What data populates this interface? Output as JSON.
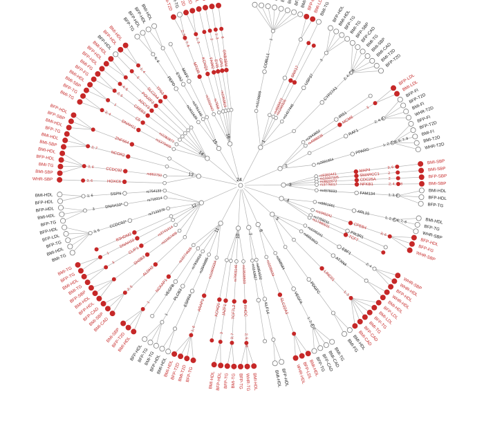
{
  "colors": {
    "red": "#c62828",
    "black": "#1a1a1a",
    "edge": "#b3b3b3",
    "grey_fill": "#f2f2f2",
    "node_stroke": "#7a7a7a"
  },
  "center_label": "24",
  "groups": [
    {
      "chr": "1",
      "genes": [
        {
          "snp": "rs1126809",
          "gene": "COBLL1",
          "count": "1",
          "traits": [
            "BFP-HDL",
            "BMI-HDL",
            "BFP-TG",
            "BMI-TG",
            "BFP-T2D",
            "BMI-T2D",
            "BFP-CAD",
            "BMI-CAD"
          ],
          "red": [
            false,
            false,
            false,
            false,
            false,
            false,
            false,
            false
          ],
          "g": false
        },
        {
          "snp": "",
          "gene": "",
          "count": "",
          "traits": [
            "BFP-LDL",
            "BMI-LDL"
          ],
          "red": [
            true,
            true
          ],
          "g": false
        },
        {
          "snp": "rs4665972",
          "gene": "SNX17",
          "count": "",
          "traits": [
            "BMI-TG"
          ],
          "red": [
            false
          ],
          "g": true
        },
        {
          "snp": "rs1260326",
          "gene": "",
          "count": "",
          "traits": [],
          "red": [],
          "g": true
        },
        {
          "snp": "rs1427445",
          "gene": "USP37",
          "count": "3",
          "traits": [
            "BFP-HDL",
            "BMI-HDL",
            "BFP-TG",
            "BMI-TG"
          ],
          "red": [
            false,
            false,
            false,
            false
          ],
          "g": false
        },
        {
          "snp": "",
          "gene": "CYP27A1",
          "count": "2; 4; 7; 8",
          "traits": [
            "BFP-SBP",
            "BFP-CAD",
            "BMI-TG",
            "BMI-SBP",
            "BMI-CAD",
            "BMI-T2D",
            "BFP-T2D"
          ],
          "red": [
            false,
            false,
            false,
            false,
            false,
            false,
            false
          ],
          "g": false
        }
      ]
    },
    {
      "chr": "2",
      "genes": [
        {
          "snp": "rs2943652",
          "gene": "IRS1",
          "count": "",
          "traits": [],
          "red": [],
          "g": false
        },
        {
          "snp": "rs4988235",
          "gene": "MCM6",
          "count": "3",
          "traits": [
            "BFP-LDL",
            "BMI-LDL"
          ],
          "red": [
            true,
            true
          ],
          "g": true
        },
        {
          "snp": "",
          "gene": "RAF1",
          "count": "2; 4; 8",
          "traits": [
            "BFP-FI",
            "BFP-T2D",
            "BMI-FI",
            "WHR-T2D"
          ],
          "red": [
            false,
            false,
            false,
            false
          ],
          "g": false
        },
        {
          "snp": "rs2881654",
          "gene": "PPARG",
          "count": "1; 2; 3; 5; 6; 7; 8",
          "traits": [
            "BFP-FI",
            "BFP-T2D",
            "BMI-FI",
            "BMI-T2D",
            "WHR-T2D"
          ],
          "red": [
            false,
            false,
            false,
            false,
            false
          ],
          "g": false
        }
      ]
    },
    {
      "chr": "3",
      "genes": [
        {
          "snp": "rs9382441",
          "gene": "MAP4",
          "count": "3; 6",
          "traits": [
            "BMI-SBP"
          ],
          "red": [
            true
          ],
          "g": true
        },
        {
          "snp": "rs13107325",
          "gene": "SMARCC1",
          "count": "2",
          "traits": [
            "BMI-SBP"
          ],
          "red": [
            true
          ],
          "g": true
        },
        {
          "snp": "rs3822072",
          "gene": "CDC25A",
          "count": "2",
          "traits": [
            "BFP-SBP"
          ],
          "red": [
            true
          ],
          "g": true
        },
        {
          "snp": "rs3776017",
          "gene": "NFKB1",
          "count": "2; 4; 7; 8",
          "traits": [
            "BMI-SBP"
          ],
          "red": [
            true
          ],
          "g": true
        },
        {
          "snp": "rs4976033",
          "gene": "FAM134",
          "count": "1; 3; 6",
          "traits": [
            "BMI-HDL",
            "BFP-HDL",
            "BFP-TG"
          ],
          "red": [
            false,
            false,
            false
          ],
          "g": false
        }
      ]
    },
    {
      "chr": "4",
      "genes": [
        {
          "snp": "rs9861661",
          "gene": "ARL15",
          "count": "1; 2; 4; 6; 7; 8",
          "traits": [
            "BMI-HDL",
            "BFP-TG",
            "WHR-SBP"
          ],
          "red": [
            false,
            false,
            false
          ],
          "g": false
        },
        {
          "snp": "rs1045241",
          "gene": "CPEB4",
          "count": "3; 6",
          "traits": [
            "BFP-HDL",
            "BFP-FG",
            "WHR-SBP"
          ],
          "red": [
            true,
            true,
            true
          ],
          "g": true
        },
        {
          "snp": "rs7759211",
          "gene": "PIK3R1",
          "count": "",
          "traits": [],
          "red": [],
          "g": false
        },
        {
          "snp": "rs17490011",
          "gene": "TCF7",
          "count": "",
          "traits": [],
          "red": [],
          "g": true
        }
      ]
    },
    {
      "chr": "5",
      "genes": [
        {
          "snp": "rs1045241",
          "gene": "EBF1",
          "count": "2; 4",
          "traits": [
            "WHR-SBP",
            "WHR-HDL",
            "BFP-HDL"
          ],
          "red": [
            true,
            true,
            true
          ],
          "g": false
        },
        {
          "snp": "rs6553922",
          "gene": "ATXN4",
          "count": "",
          "traits": [
            "WHR-HDL",
            "BMI-HDL"
          ],
          "red": [
            true,
            true
          ],
          "g": false
        },
        {
          "snp": "",
          "gene": "LINC01",
          "count": "1; 3",
          "traits": [
            "BFP-LDL",
            "BMI-LDL",
            "BFP-TG",
            "BMI-TG",
            "BFP-CAD",
            "BMI-CAD"
          ],
          "red": [
            true,
            true,
            true,
            true,
            true,
            true
          ],
          "g": true
        },
        {
          "snp": "",
          "gene": "PDGFC",
          "count": "",
          "traits": [
            "BMI-HDL",
            "BMI-FG"
          ],
          "red": [
            false,
            false
          ],
          "g": false
        }
      ]
    },
    {
      "chr": "6",
      "genes": [
        {
          "snp": "rs998584",
          "gene": "VEGFA",
          "count": "1; 2; 4; 7",
          "traits": [
            "BMI-TG",
            "BMI-CAD",
            "BFP-CAD",
            "BFP-TG"
          ],
          "red": [
            false,
            false,
            false,
            false
          ],
          "g": false
        },
        {
          "snp": "rs2235634",
          "gene": "SLC22A3",
          "count": "",
          "traits": [
            "BMI-HDL",
            "BFP-LDL",
            "WHR-HDL"
          ],
          "red": [
            true,
            true,
            true
          ],
          "g": true
        }
      ]
    },
    {
      "chr": "7",
      "genes": [
        {
          "snp": "rs6954302",
          "gene": "KLF14",
          "count": "",
          "traits": [
            "BFP-HDL",
            "BMI-HDL"
          ],
          "red": [
            false,
            false
          ],
          "g": false
        },
        {
          "snp": "rs1143827",
          "gene": "",
          "count": "",
          "traits": [],
          "red": [],
          "g": false
        }
      ]
    },
    {
      "chr": "10",
      "genes": [
        {
          "snp": "rs10508503",
          "gene": "RHOC",
          "count": "2; 5; 6; 8",
          "traits": [
            "BMI-HDL",
            "WHR-TG",
            "BFP-TG"
          ],
          "red": [
            true,
            true,
            true
          ],
          "g": true
        },
        {
          "snp": "rs7903146",
          "gene": "TCF7L2",
          "count": "3; 7",
          "traits": [
            "BMI-TG",
            "BFP-TG"
          ],
          "red": [
            true,
            true
          ],
          "g": true
        },
        {
          "snp": "",
          "gene": "JAZF1",
          "count": "3",
          "traits": [
            "BFP-HDL",
            "BMI-HDL"
          ],
          "red": [
            true,
            true
          ],
          "g": true
        },
        {
          "snp": "",
          "gene": "KCNQ1",
          "count": "",
          "traits": [],
          "red": [],
          "g": true
        }
      ]
    },
    {
      "chr": "11",
      "genes": [
        {
          "snp": "rs11603334",
          "gene": "ARAP1",
          "count": "1; 6",
          "traits": [
            "BFP-TG",
            "BMI-T2D",
            "BFP-T2D",
            "BMI-HDL"
          ],
          "red": [
            true,
            true,
            true,
            true
          ],
          "g": true
        },
        {
          "snp": "rs2845885",
          "gene": "ESRRA",
          "count": "",
          "traits": [
            "BMI-HDL",
            "BFP-HDL"
          ],
          "red": [
            false,
            false
          ],
          "g": false
        },
        {
          "snp": "rs7936810",
          "gene": "PLCB3",
          "count": "1",
          "traits": [
            "BMI-TG",
            "BFP-TG",
            "BFP-HDL"
          ],
          "red": [
            false,
            false,
            false
          ],
          "g": false
        },
        {
          "snp": "",
          "gene": "VEGFB",
          "count": "",
          "traits": [],
          "red": [],
          "g": false
        },
        {
          "snp": "rs10774625",
          "gene": "NCKAP1",
          "count": "1",
          "traits": [
            "BMI-HDL",
            "BFP-T2D",
            "BMI-SBP"
          ],
          "red": [
            true,
            true,
            true
          ],
          "g": true
        }
      ]
    },
    {
      "chr": "12",
      "genes": [
        {
          "snp": "",
          "gene": "ALDH2",
          "count": "2; 5",
          "traits": [
            "BMI-CAD",
            "BMI-SBP",
            "BFP-CAD"
          ],
          "red": [
            true,
            true,
            true
          ],
          "g": true
        },
        {
          "snp": "rs11057405",
          "gene": "SH2B3",
          "count": "",
          "traits": [
            "BFP-HDL",
            "BMI-HDL",
            "BFP-SBP"
          ],
          "red": [
            true,
            true,
            true
          ],
          "g": true
        },
        {
          "snp": "rs3741414",
          "gene": "CLIP1",
          "count": "3",
          "traits": [
            "BMI-TG",
            "BMI-HDL"
          ],
          "red": [
            true,
            true
          ],
          "g": true
        },
        {
          "snp": "",
          "gene": "DNAH10",
          "count": "1",
          "traits": [
            "BFP-TG",
            "BMI-TG"
          ],
          "red": [
            true,
            true
          ],
          "g": true
        },
        {
          "snp": "",
          "gene": "R3HDM2",
          "count": "",
          "traits": [],
          "red": [],
          "g": true
        },
        {
          "snp": "rs7133378",
          "gene": "CCDC92*",
          "count": "3; 6",
          "traits": [
            "BMI-TG",
            "BMI-HDL",
            "BFP-TG",
            "BFP-LDL",
            "BFP-HDL"
          ],
          "red": [
            false,
            false,
            false,
            false,
            false
          ],
          "g": false
        },
        {
          "snp": "rs718314",
          "gene": "DNAH10*",
          "count": "3",
          "traits": [
            "BFP-TG",
            "BMI-HDL",
            "BFP-HDL"
          ],
          "red": [
            false,
            false,
            false
          ],
          "g": false
        },
        {
          "snp": "rs754133",
          "gene": "SSPN",
          "count": "1; 6",
          "traits": [
            "BFP-HDL",
            "BMI-HDL"
          ],
          "red": [
            false,
            false
          ],
          "g": false
        }
      ]
    },
    {
      "chr": "13",
      "genes": [
        {
          "snp": "",
          "gene": "HOXC6",
          "count": "3; 6",
          "traits": [
            "WHR-SBP"
          ],
          "red": [
            true
          ],
          "g": true
        },
        {
          "snp": "rs863750",
          "gene": "CCDC92",
          "count": "3; 6",
          "traits": [
            "BMI-SBP",
            "BMI-TG",
            "BFP-HDL",
            "BMI-HDL"
          ],
          "red": [
            true,
            true,
            true,
            true
          ],
          "g": true
        },
        {
          "snp": "",
          "gene": "NCOR2",
          "count": "2; 7",
          "traits": [
            "BMI-SBP",
            "BMI-HDL",
            "BFP-TG"
          ],
          "red": [
            true,
            true,
            true
          ],
          "g": true
        },
        {
          "snp": "",
          "gene": "ZNF664",
          "count": "",
          "traits": [
            "BMI-HDL",
            "BFP-SBP",
            "BFP-HDL"
          ],
          "red": [
            true,
            true,
            true
          ],
          "g": true
        }
      ]
    },
    {
      "chr": "14",
      "genes": [
        {
          "snp": "rs1379499",
          "gene": "DNAH11",
          "count": "2; 4",
          "traits": [
            "BMI-TG",
            "BFP-TG"
          ],
          "red": [
            true,
            true
          ],
          "g": true
        },
        {
          "snp": "rs2282877",
          "gene": "C5",
          "count": "1",
          "traits": [
            "BMI-SBP",
            "BMI-HDL"
          ],
          "red": [
            true,
            true
          ],
          "g": true
        },
        {
          "snp": "",
          "gene": "CREB3",
          "count": "2; 5",
          "traits": [
            "BFP-FG",
            "BMI-FG"
          ],
          "red": [
            true,
            true
          ],
          "g": true
        },
        {
          "snp": "",
          "gene": "ADCY3",
          "count": "2; 4; 5",
          "traits": [
            "BFP-HDL"
          ],
          "red": [
            true
          ],
          "g": true
        },
        {
          "snp": "",
          "gene": "POU2F2",
          "count": "",
          "traits": [
            "BFP-HDL",
            "BMI-HDL"
          ],
          "red": [
            true,
            true
          ],
          "g": true
        },
        {
          "snp": "",
          "gene": "SLC2A4",
          "count": "3",
          "traits": [
            "BFP-HDL"
          ],
          "red": [
            false
          ],
          "g": true
        },
        {
          "snp": "",
          "gene": "TP53",
          "count": "1; 4",
          "traits": [
            "BFP-HDL",
            "BMI-HDL"
          ],
          "red": [
            true,
            true
          ],
          "g": true
        }
      ]
    },
    {
      "chr": "15",
      "genes": [
        {
          "snp": "rs2611639",
          "gene": "PEPD",
          "count": "6; 8",
          "traits": [
            "BFP-TG",
            "BFP-HDL"
          ],
          "red": [
            false,
            false
          ],
          "g": false
        },
        {
          "snp": "rs3761445",
          "gene": "EYA2",
          "count": "",
          "traits": [
            "BFP-HDL",
            "BMI-HDL"
          ],
          "red": [
            false,
            false
          ],
          "g": false
        },
        {
          "snp": "",
          "gene": "MAFF",
          "count": "",
          "traits": [],
          "red": [],
          "g": false
        }
      ]
    },
    {
      "chr": "16",
      "genes": [
        {
          "snp": "rs1010447",
          "gene": "MTOR",
          "count": "2; 3; 5; 7; 8",
          "traits": [
            "BMI-T2D",
            "BMI-TG"
          ],
          "red": [
            true,
            false
          ],
          "g": true
        },
        {
          "snp": "rs7558",
          "gene": "KCNQ1",
          "count": "1; 3",
          "traits": [
            "BMI-T2D",
            "BFP-T2D"
          ],
          "red": [
            true,
            true
          ],
          "g": true
        },
        {
          "snp": "",
          "gene": "FAIM2",
          "count": "",
          "traits": [
            "BFP-HDL"
          ],
          "red": [
            true
          ],
          "g": true
        },
        {
          "snp": "rs1093819",
          "gene": "EVI5",
          "count": "2",
          "traits": [
            "BMI-T2D"
          ],
          "red": [
            true
          ],
          "g": true
        },
        {
          "snp": "",
          "gene": "GPI1",
          "count": "1; 3",
          "traits": [
            "BFP-T2D"
          ],
          "red": [
            true
          ],
          "g": true
        },
        {
          "snp": "",
          "gene": "GNB3BM",
          "count": "6",
          "traits": [
            "BFP-LDL"
          ],
          "red": [
            true
          ],
          "g": true
        }
      ]
    }
  ]
}
